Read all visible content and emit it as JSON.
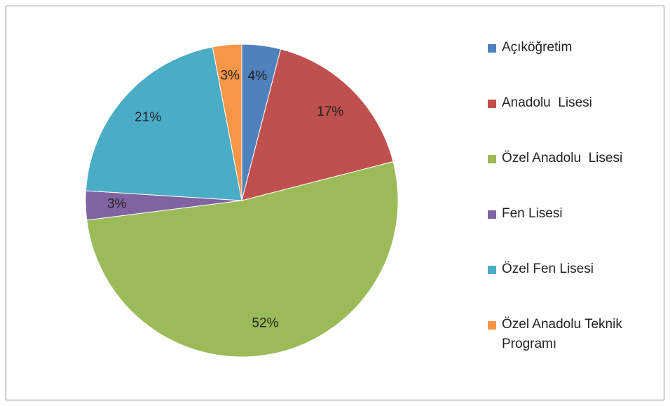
{
  "chart_data": {
    "type": "pie",
    "categories": [
      "Açıköğretim",
      "Anadolu  Lisesi",
      "Özel Anadolu  Lisesi",
      "Fen Lisesi",
      "Özel Fen Lisesi",
      "Özel Anadolu Teknik Programı"
    ],
    "values": [
      4,
      17,
      52,
      3,
      21,
      3
    ],
    "value_labels": [
      "4%",
      "17%",
      "52%",
      "3%",
      "21%",
      "3%"
    ],
    "colors": [
      "#4f81bd",
      "#c0504d",
      "#9bbb59",
      "#8064a2",
      "#4bacc6",
      "#f79646"
    ],
    "legend": "right"
  }
}
